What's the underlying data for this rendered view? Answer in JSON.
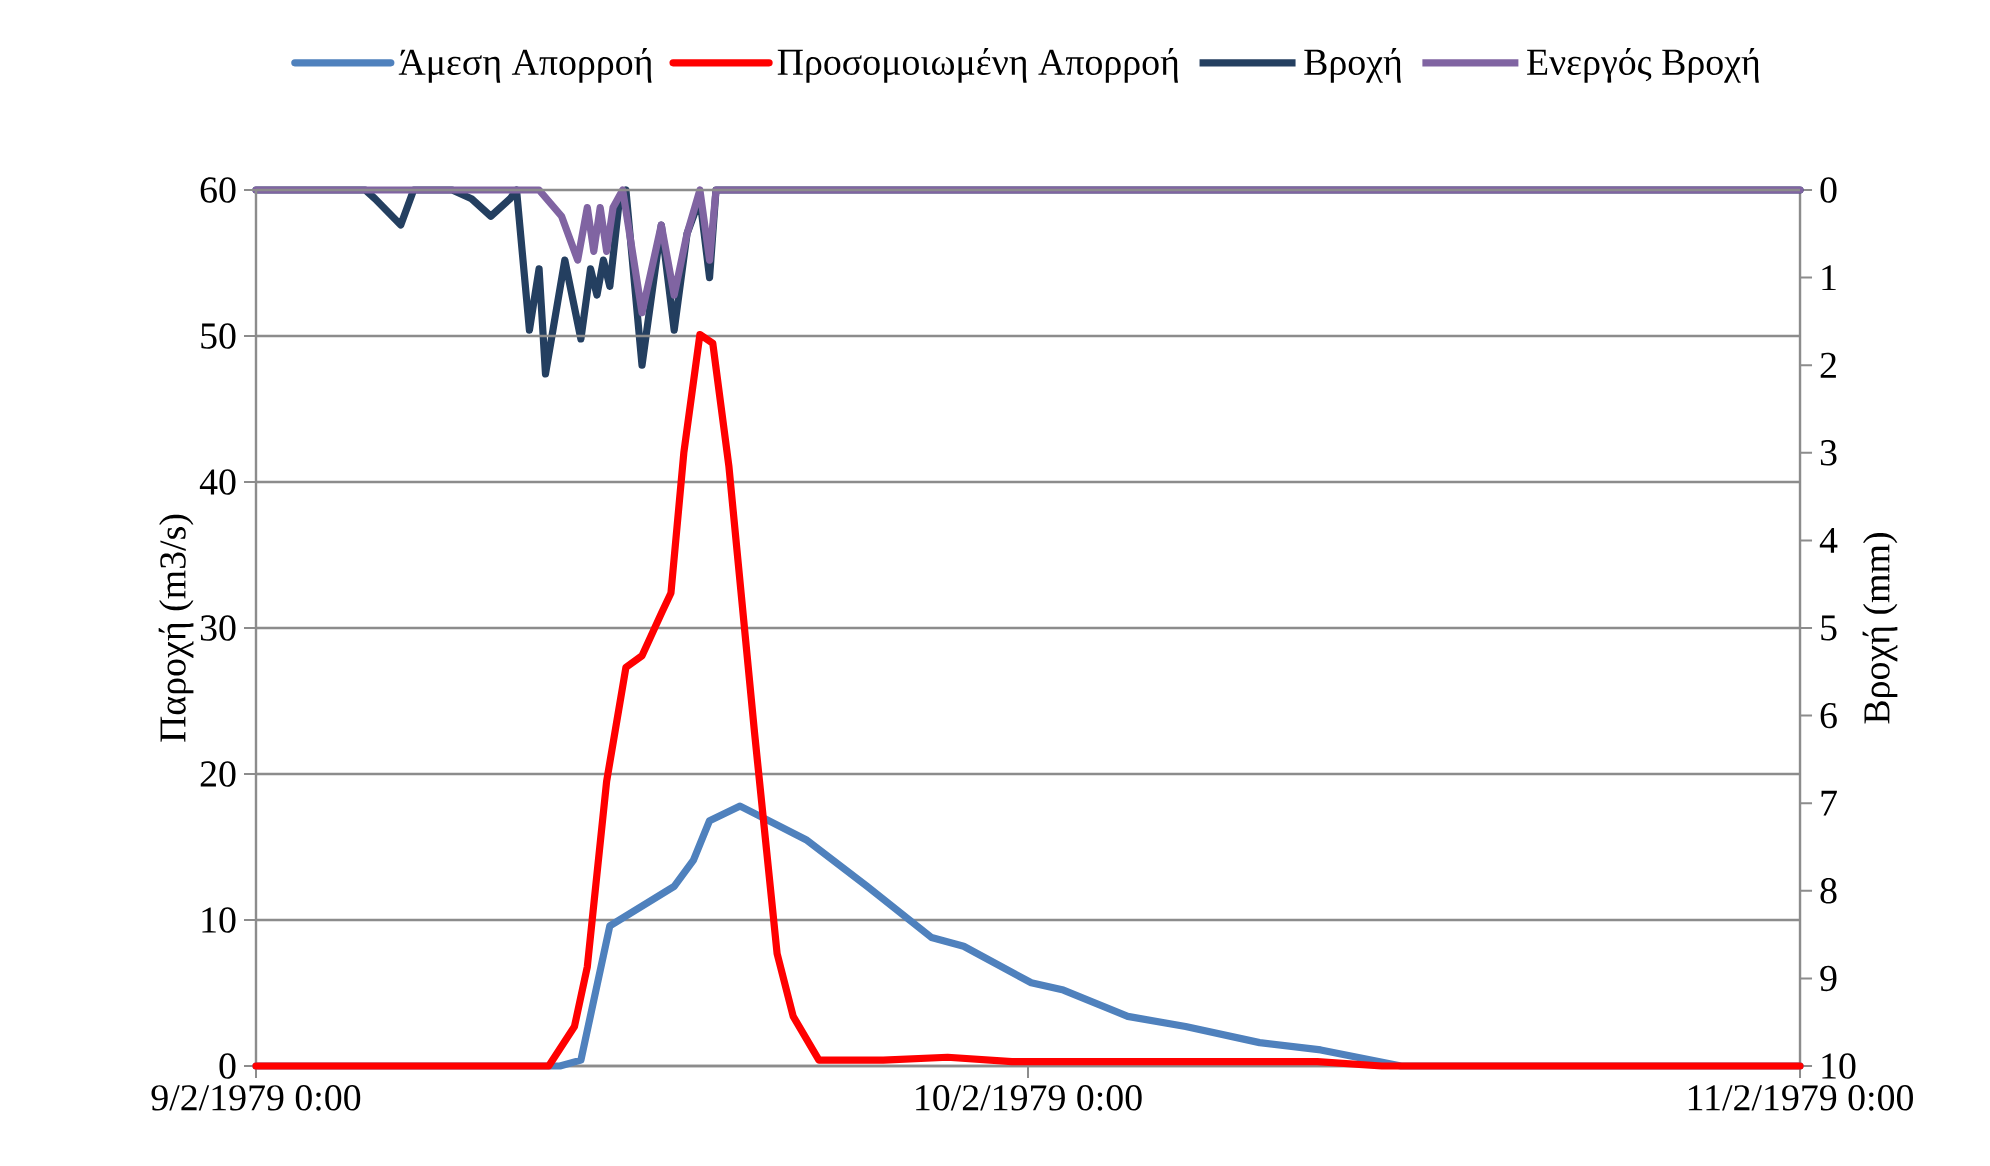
{
  "chart_data": {
    "type": "line",
    "ylabel": "Παροχή (m3/s)",
    "y2label": "Βροχή (mm)",
    "xlim": [
      "1979-02-09T00:00",
      "1979-02-11T00:00"
    ],
    "xticks": [
      {
        "value": "1979-02-09T00:00",
        "label": "9/2/1979 0:00"
      },
      {
        "value": "1979-02-10T00:00",
        "label": "10/2/1979 0:00"
      },
      {
        "value": "1979-02-11T00:00",
        "label": "11/2/1979 0:00"
      }
    ],
    "ylim": [
      0,
      60
    ],
    "yticks": [
      0,
      10,
      20,
      30,
      40,
      50,
      60
    ],
    "y2lim": [
      10,
      0
    ],
    "y2ticks": [
      0,
      1,
      2,
      3,
      4,
      5,
      6,
      7,
      8,
      9,
      10
    ],
    "grid": "y",
    "legend": "top",
    "series": [
      {
        "name": "Άμεση Απορροή",
        "color": "#4f81bd",
        "x": [
          "1979-02-09T00:00",
          "1979-02-09T09:27",
          "1979-02-09T10:06",
          "1979-02-09T11:00",
          "1979-02-09T13:00",
          "1979-02-09T13:36",
          "1979-02-09T14:06",
          "1979-02-09T15:03",
          "1979-02-09T17:06",
          "1979-02-09T19:00",
          "1979-02-09T21:00",
          "1979-02-09T22:00",
          "1979-02-10T00:06",
          "1979-02-10T01:06",
          "1979-02-10T03:06",
          "1979-02-10T04:54",
          "1979-02-10T07:12",
          "1979-02-10T09:06",
          "1979-02-10T11:36",
          "1979-02-11T00:00"
        ],
        "values": [
          0,
          0,
          0.4,
          9.6,
          12.3,
          14.1,
          16.8,
          17.8,
          15.5,
          12.3,
          8.8,
          8.2,
          5.7,
          5.2,
          3.4,
          2.7,
          1.6,
          1.1,
          0,
          0
        ]
      },
      {
        "name": "Προσομοιωμένη Απορροή",
        "color": "#ff0000",
        "x": [
          "1979-02-09T00:00",
          "1979-02-09T09:06",
          "1979-02-09T09:54",
          "1979-02-09T10:18",
          "1979-02-09T10:54",
          "1979-02-09T11:30",
          "1979-02-09T12:00",
          "1979-02-09T12:36",
          "1979-02-09T12:54",
          "1979-02-09T13:18",
          "1979-02-09T13:48",
          "1979-02-09T14:12",
          "1979-02-09T14:42",
          "1979-02-09T15:30",
          "1979-02-09T16:12",
          "1979-02-09T16:42",
          "1979-02-09T17:30",
          "1979-02-09T19:30",
          "1979-02-09T21:30",
          "1979-02-09T23:30",
          "1979-02-10T03:00",
          "1979-02-10T09:00",
          "1979-02-10T11:00",
          "1979-02-11T00:00"
        ],
        "values": [
          0,
          0,
          2.7,
          6.8,
          19.5,
          27.3,
          28.1,
          31.0,
          32.4,
          42.0,
          50.1,
          49.5,
          41.1,
          22.8,
          7.7,
          3.4,
          0.4,
          0.4,
          0.6,
          0.3,
          0.3,
          0.3,
          0,
          0
        ]
      },
      {
        "name": "Βροχή",
        "color": "#243f60",
        "axis": "y2",
        "x": [
          "1979-02-09T00:00",
          "1979-02-09T03:24",
          "1979-02-09T03:42",
          "1979-02-09T04:30",
          "1979-02-09T04:54",
          "1979-02-09T06:06",
          "1979-02-09T06:42",
          "1979-02-09T07:18",
          "1979-02-09T07:54",
          "1979-02-09T08:06",
          "1979-02-09T08:30",
          "1979-02-09T08:48",
          "1979-02-09T09:00",
          "1979-02-09T09:36",
          "1979-02-09T10:06",
          "1979-02-09T10:24",
          "1979-02-09T10:36",
          "1979-02-09T10:48",
          "1979-02-09T11:00",
          "1979-02-09T11:18",
          "1979-02-09T11:30",
          "1979-02-09T12:00",
          "1979-02-09T12:36",
          "1979-02-09T13:00",
          "1979-02-09T13:24",
          "1979-02-09T13:48",
          "1979-02-09T14:06",
          "1979-02-09T14:18",
          "1979-02-11T00:00"
        ],
        "values": [
          0,
          0,
          0.1,
          0.4,
          0,
          0,
          0.1,
          0.3,
          0.1,
          0,
          1.6,
          0.9,
          2.1,
          0.8,
          1.7,
          0.9,
          1.2,
          0.8,
          1.1,
          0.1,
          0,
          2.0,
          0.4,
          1.6,
          0.5,
          0.1,
          1.0,
          0,
          0
        ]
      },
      {
        "name": "Ενεργός Βροχή",
        "color": "#8064a2",
        "axis": "y2",
        "x": [
          "1979-02-09T00:00",
          "1979-02-09T08:48",
          "1979-02-09T09:30",
          "1979-02-09T10:00",
          "1979-02-09T10:18",
          "1979-02-09T10:30",
          "1979-02-09T10:42",
          "1979-02-09T10:54",
          "1979-02-09T11:06",
          "1979-02-09T11:24",
          "1979-02-09T12:00",
          "1979-02-09T12:36",
          "1979-02-09T13:00",
          "1979-02-09T13:24",
          "1979-02-09T13:48",
          "1979-02-09T14:06",
          "1979-02-09T14:18",
          "1979-02-11T00:00"
        ],
        "values": [
          0,
          0,
          0.3,
          0.8,
          0.2,
          0.7,
          0.2,
          0.7,
          0.2,
          0,
          1.4,
          0.4,
          1.2,
          0.5,
          0,
          0.8,
          0,
          0
        ]
      }
    ]
  }
}
